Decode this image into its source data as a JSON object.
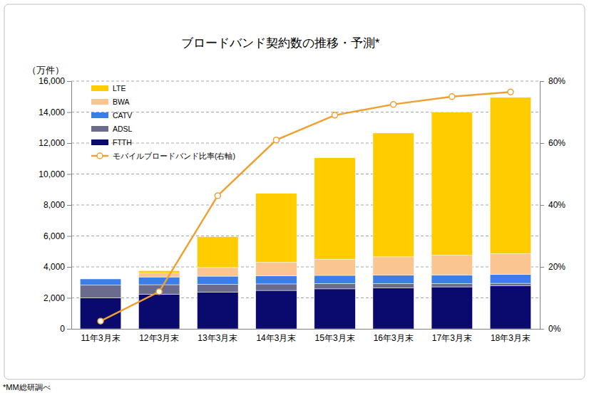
{
  "chart_data": {
    "type": "bar",
    "title": "ブロードバンド契約数の推移・予測*",
    "ylabel": "（万件）",
    "notes": [
      "*MM総研調べ"
    ],
    "categories": [
      "11年3月末",
      "12年3月末",
      "13年3月末",
      "14年3月末",
      "15年3月末",
      "16年3月末",
      "17年3月末",
      "18年3月末"
    ],
    "stacked": true,
    "grid": true,
    "legend": "upper left",
    "ylim": [
      0,
      16000
    ],
    "yticks": [
      0,
      {
        "value": 2000,
        "label": "2,000"
      },
      {
        "value": 4000,
        "label": "4,000"
      },
      {
        "value": 6000,
        "label": "6,000"
      },
      {
        "value": 8000,
        "label": "8,000"
      },
      {
        "value": 10000,
        "label": "10,000"
      },
      {
        "value": 12000,
        "label": "12,000"
      },
      {
        "value": 14000,
        "label": "14,000"
      },
      {
        "value": 16000,
        "label": "16,000"
      }
    ],
    "y2lim": [
      0,
      80
    ],
    "y2ticks": [
      {
        "value": 0,
        "label": "0%"
      },
      {
        "value": 20,
        "label": "20%"
      },
      {
        "value": 40,
        "label": "40%"
      },
      {
        "value": 60,
        "label": "60%"
      },
      {
        "value": 80,
        "label": "80%"
      }
    ],
    "series": [
      {
        "name": "LTE",
        "type": "bar",
        "color": "#ffcc00",
        "values": [
          0,
          150,
          1990,
          4450,
          6550,
          8000,
          9250,
          10100
        ]
      },
      {
        "name": "BWA",
        "type": "bar",
        "color": "#fac591",
        "values": [
          0,
          250,
          560,
          880,
          1050,
          1190,
          1270,
          1340
        ]
      },
      {
        "name": "CATV",
        "type": "bar",
        "color": "#3b7de9",
        "values": [
          400,
          500,
          520,
          520,
          530,
          540,
          560,
          570
        ]
      },
      {
        "name": "ADSL",
        "type": "bar",
        "color": "#6b6b8e",
        "values": [
          820,
          620,
          500,
          420,
          340,
          270,
          210,
          170
        ]
      },
      {
        "name": "FTTH",
        "type": "bar",
        "color": "#0a0a6e",
        "values": [
          2000,
          2230,
          2380,
          2480,
          2580,
          2650,
          2710,
          2770
        ]
      },
      {
        "name": "モバイルブロードバンド比率(右軸)",
        "type": "line",
        "axis": "y2",
        "color": "#f0a030",
        "marker": "circle",
        "values": [
          2.5,
          12,
          43,
          61,
          69,
          72.5,
          75,
          76.5
        ]
      }
    ]
  }
}
